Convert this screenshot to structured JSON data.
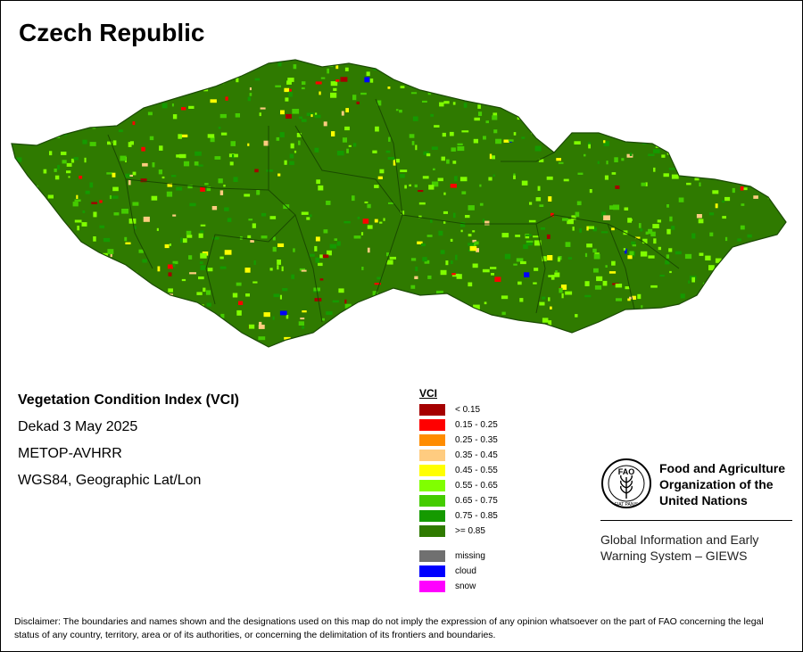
{
  "map": {
    "title": "Czech Republic",
    "colors": {
      "dark_green": "#2f7a00",
      "border": "#1a4a00"
    }
  },
  "info": {
    "heading": "Vegetation Condition Index (VCI)",
    "dekad": "Dekad 3 May 2025",
    "sensor": "METOP-AVHRR",
    "projection": "WGS84, Geographic Lat/Lon"
  },
  "legend": {
    "title": "VCI",
    "classes": [
      {
        "label": "< 0.15",
        "color": "#a50000"
      },
      {
        "label": "0.15 - 0.25",
        "color": "#ff0000"
      },
      {
        "label": "0.25 - 0.35",
        "color": "#ff8c00"
      },
      {
        "label": "0.35 - 0.45",
        "color": "#ffcc80"
      },
      {
        "label": "0.45 - 0.55",
        "color": "#ffff00"
      },
      {
        "label": "0.55 - 0.65",
        "color": "#80ff00"
      },
      {
        "label": "0.65 - 0.75",
        "color": "#44cc00"
      },
      {
        "label": "0.75 - 0.85",
        "color": "#159a00"
      },
      {
        "label": ">= 0.85",
        "color": "#2f7a00"
      }
    ],
    "other": [
      {
        "label": "missing",
        "color": "#707070"
      },
      {
        "label": "cloud",
        "color": "#0000ff"
      },
      {
        "label": "snow",
        "color": "#ff00ff"
      }
    ]
  },
  "logo": {
    "fao_name": "Food and Agriculture Organization of the United Nations",
    "emblem_text": "FAO",
    "emblem_motto": "FIAT PANIS",
    "giews_name": "Global Information and Early Warning System – GIEWS"
  },
  "disclaimer": "Disclaimer: The boundaries and names shown and the designations used on this map do not imply the expression of any opinion whatsoever on the part of FAO concerning the legal status of any country, territory, area or of its authorities, or concerning the delimitation of its frontiers and boundaries."
}
